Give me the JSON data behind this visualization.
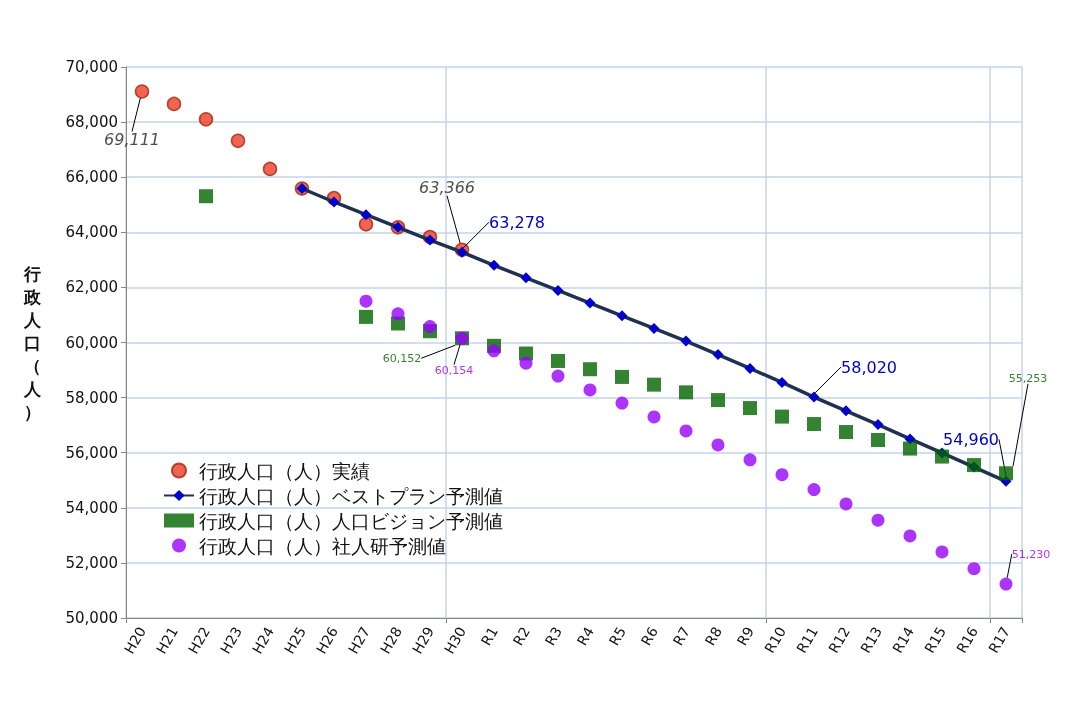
{
  "chart_data": {
    "type": "scatter",
    "ylabel": "行政人口（人）",
    "categories": [
      "H20",
      "H21",
      "H22",
      "H23",
      "H24",
      "H25",
      "H26",
      "H27",
      "H28",
      "H29",
      "H30",
      "R1",
      "R2",
      "R3",
      "R4",
      "R5",
      "R6",
      "R7",
      "R8",
      "R9",
      "R10",
      "R11",
      "R12",
      "R13",
      "R14",
      "R15",
      "R16",
      "R17"
    ],
    "series": [
      {
        "name": "行政人口（人）実績",
        "marker": "circle",
        "color": "#f03c28",
        "values": [
          69111,
          68660,
          68100,
          67320,
          66300,
          65590,
          65240,
          64290,
          64180,
          63830,
          63366,
          null,
          null,
          null,
          null,
          null,
          null,
          null,
          null,
          null,
          null,
          null,
          null,
          null,
          null,
          null,
          null,
          null
        ],
        "value_labels": [
          "69,111",
          null,
          null,
          null,
          null,
          null,
          null,
          null,
          null,
          null,
          "63,366",
          null,
          null,
          null,
          null,
          null,
          null,
          null,
          null,
          null,
          null,
          null,
          null,
          null,
          null,
          null,
          null,
          null
        ]
      },
      {
        "name": "行政人口（人）ベストプラン予測値",
        "type": "line",
        "marker": "diamond",
        "color": "#0000cc",
        "values": [
          null,
          null,
          null,
          null,
          null,
          65590,
          65100,
          64640,
          64180,
          63720,
          63278,
          62800,
          62350,
          61890,
          61430,
          60970,
          60510,
          60050,
          59560,
          59060,
          58550,
          58020,
          57520,
          57020,
          56500,
          55990,
          55480,
          54960
        ],
        "value_labels": [
          null,
          null,
          null,
          null,
          null,
          null,
          null,
          null,
          null,
          null,
          "63,278",
          null,
          null,
          null,
          null,
          null,
          null,
          null,
          null,
          null,
          null,
          "58,020",
          null,
          null,
          null,
          null,
          null,
          "54,960"
        ]
      },
      {
        "name": "行政人口（人）人口ビジョン予測値",
        "marker": "square",
        "color": "#006400",
        "values": [
          null,
          null,
          65310,
          null,
          null,
          null,
          null,
          60930,
          60690,
          60410,
          60152,
          59880,
          59600,
          59330,
          59030,
          58750,
          58470,
          58190,
          57910,
          57620,
          57310,
          57040,
          56750,
          56460,
          56150,
          55860,
          55550,
          55253
        ],
        "value_labels": [
          null,
          null,
          null,
          null,
          null,
          null,
          null,
          null,
          null,
          null,
          "60,152",
          null,
          null,
          null,
          null,
          null,
          null,
          null,
          null,
          null,
          null,
          null,
          null,
          null,
          null,
          null,
          null,
          "55,253"
        ]
      },
      {
        "name": "行政人口（人）社人研予測値",
        "marker": "circle",
        "color": "#9900ff",
        "values": [
          null,
          null,
          null,
          null,
          null,
          null,
          null,
          61500,
          61040,
          60580,
          60154,
          59700,
          59250,
          58780,
          58280,
          57800,
          57300,
          56790,
          56280,
          55740,
          55200,
          54660,
          54140,
          53550,
          52980,
          52400,
          51790,
          51230
        ],
        "value_labels": [
          null,
          null,
          null,
          null,
          null,
          null,
          null,
          null,
          null,
          null,
          "60,154",
          null,
          null,
          null,
          null,
          null,
          null,
          null,
          null,
          null,
          null,
          null,
          null,
          null,
          null,
          null,
          null,
          "51,230"
        ]
      }
    ],
    "ylim": [
      50000,
      70000
    ],
    "yticks": [
      {
        "value": 50000,
        "label": "50,000"
      },
      {
        "value": 52000,
        "label": "52,000"
      },
      {
        "value": 54000,
        "label": "54,000"
      },
      {
        "value": 56000,
        "label": "56,000"
      },
      {
        "value": 58000,
        "label": "58,000"
      },
      {
        "value": 60000,
        "label": "60,000"
      },
      {
        "value": 62000,
        "label": "62,000"
      },
      {
        "value": 64000,
        "label": "64,000"
      },
      {
        "value": 66000,
        "label": "66,000"
      },
      {
        "value": 68000,
        "label": "68,000"
      },
      {
        "value": 70000,
        "label": "70,000"
      }
    ],
    "grid": true,
    "legend": "bottom left"
  }
}
